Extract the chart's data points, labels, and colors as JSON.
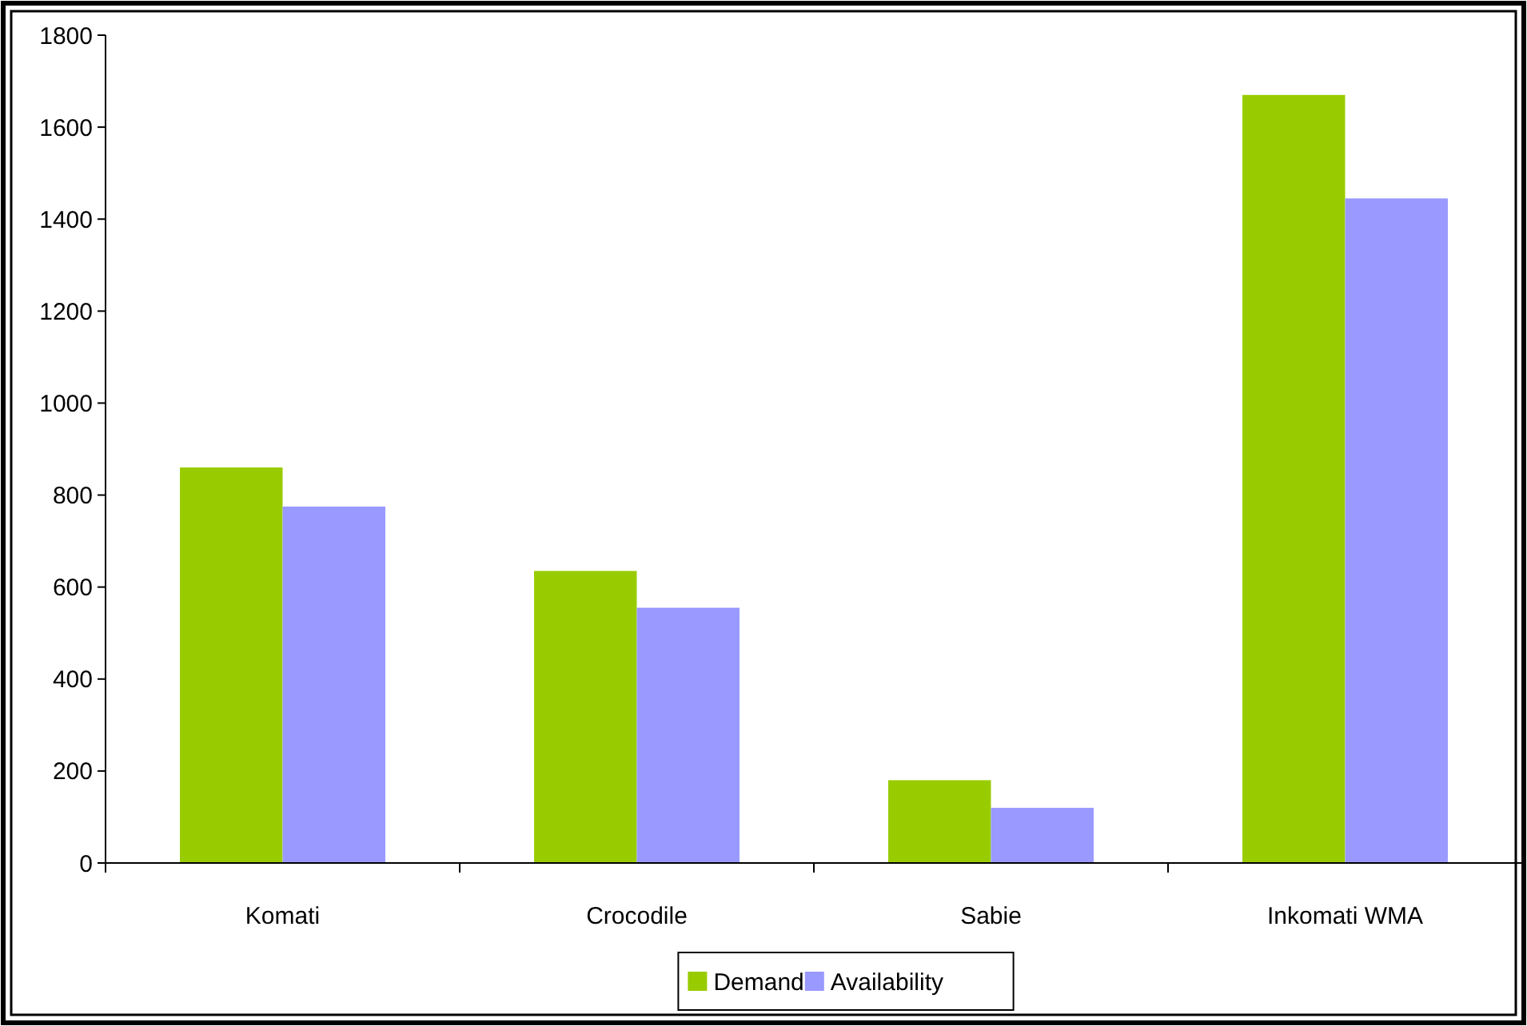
{
  "chart_data": {
    "type": "bar",
    "categories": [
      "Komati",
      "Crocodile",
      "Sabie",
      "Inkomati WMA"
    ],
    "series": [
      {
        "name": "Demand",
        "color": "#99cc00",
        "values": [
          860,
          635,
          180,
          1670
        ]
      },
      {
        "name": "Availability",
        "color": "#9999ff",
        "values": [
          775,
          555,
          120,
          1445
        ]
      }
    ],
    "ylim": [
      0,
      1800
    ],
    "yticks": [
      0,
      200,
      400,
      600,
      800,
      1000,
      1200,
      1400,
      1600,
      1800
    ],
    "grid": false,
    "legend": "bottom"
  }
}
